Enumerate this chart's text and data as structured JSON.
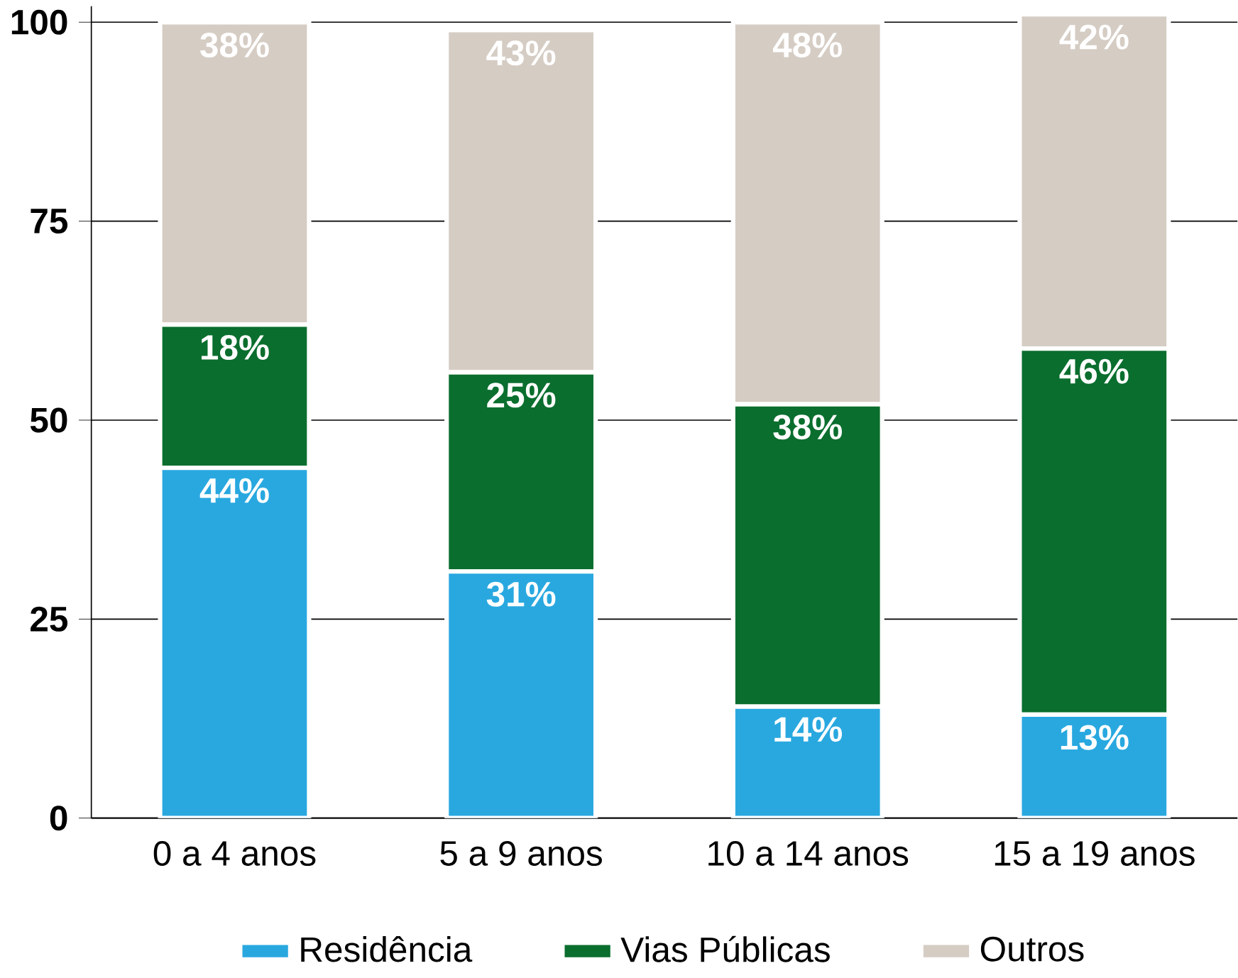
{
  "chart_data": {
    "type": "bar",
    "stacked": true,
    "categories": [
      "0 a 4 anos",
      "5 a 9 anos",
      "10 a 14 anos",
      "15 a 19 anos"
    ],
    "series": [
      {
        "name": "Residência",
        "color": "#29a8e0",
        "values": [
          44,
          31,
          14,
          13
        ],
        "value_labels": [
          "44%",
          "31%",
          "14%",
          "13%"
        ]
      },
      {
        "name": "Vias Públicas",
        "color": "#0a6e2e",
        "values": [
          18,
          25,
          38,
          46
        ],
        "value_labels": [
          "18%",
          "25%",
          "38%",
          "46%"
        ]
      },
      {
        "name": "Outros",
        "color": "#d5ccc4",
        "values": [
          38,
          43,
          48,
          42
        ],
        "value_labels": [
          "38%",
          "43%",
          "48%",
          "42%"
        ]
      }
    ],
    "ylim": [
      0,
      102
    ],
    "yticks": [
      0,
      25,
      50,
      75,
      100
    ],
    "grid": "y",
    "legend": "bottom"
  }
}
